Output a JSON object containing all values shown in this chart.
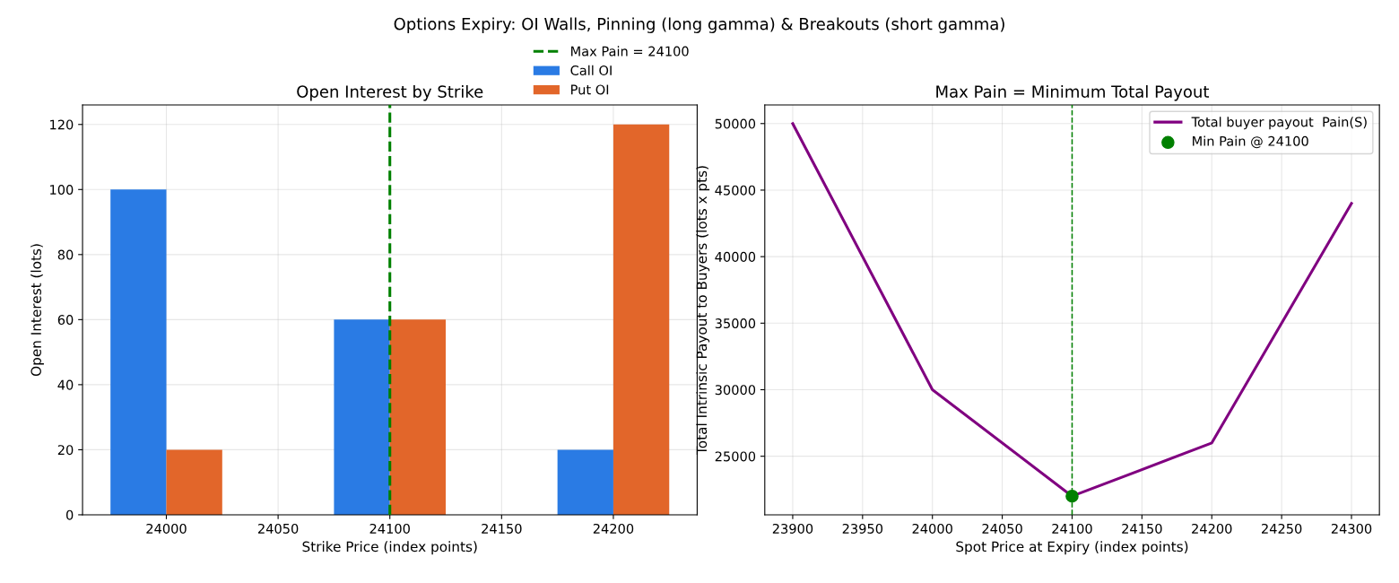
{
  "chart_data": [
    {
      "type": "bar",
      "title": "Open Interest by Strike",
      "annotations": [
        "Options Expiry: OI Walls, Pinning (long gamma) & Breakouts (short gamma)"
      ],
      "xlabel": "Strike Price (index points)",
      "ylabel": "Open Interest (lots)",
      "x": [
        24000,
        24100,
        24200
      ],
      "series": [
        {
          "name": "Call OI",
          "color": "#2a7be4",
          "values": [
            100,
            60,
            20
          ]
        },
        {
          "name": "Put OI",
          "color": "#e2662a",
          "values": [
            20,
            60,
            120
          ]
        }
      ],
      "ref_lines": [
        {
          "axis": "x",
          "value": 24100,
          "label": "Max Pain = 24100",
          "color": "#008000",
          "line_style": "dashed"
        }
      ],
      "xlim": [
        23962.5,
        24237.5
      ],
      "xticks": [
        24000,
        24050,
        24100,
        24150,
        24200
      ],
      "ylim": [
        0,
        126
      ],
      "yticks": [
        0,
        20,
        40,
        60,
        80,
        100,
        120
      ],
      "grid": true,
      "legend": "top right"
    },
    {
      "type": "line",
      "title": "Max Pain = Minimum Total Payout",
      "xlabel": "Spot Price at Expiry (index points)",
      "ylabel": "Total Intrinsic Payout to Buyers (lots x pts)",
      "series": [
        {
          "name": "Total buyer payout  Pain(S)",
          "color": "#800080",
          "x": [
            23900,
            24000,
            24100,
            24200,
            24300
          ],
          "values": [
            50000,
            30000,
            22000,
            26000,
            44000
          ]
        },
        {
          "type": "scatter",
          "name": "Min Pain @ 24100",
          "color": "#008000",
          "x": [
            24100
          ],
          "values": [
            22000
          ],
          "marker": "circle"
        }
      ],
      "ref_lines": [
        {
          "axis": "x",
          "value": 24100,
          "color": "#008000",
          "line_style": "dashed"
        }
      ],
      "xlim": [
        23880,
        24320
      ],
      "xticks": [
        23900,
        23950,
        24000,
        24050,
        24100,
        24150,
        24200,
        24250,
        24300
      ],
      "ylim": [
        20600,
        51400
      ],
      "yticks": [
        25000,
        30000,
        35000,
        40000,
        45000,
        50000
      ],
      "grid": true,
      "legend": "top right"
    }
  ]
}
